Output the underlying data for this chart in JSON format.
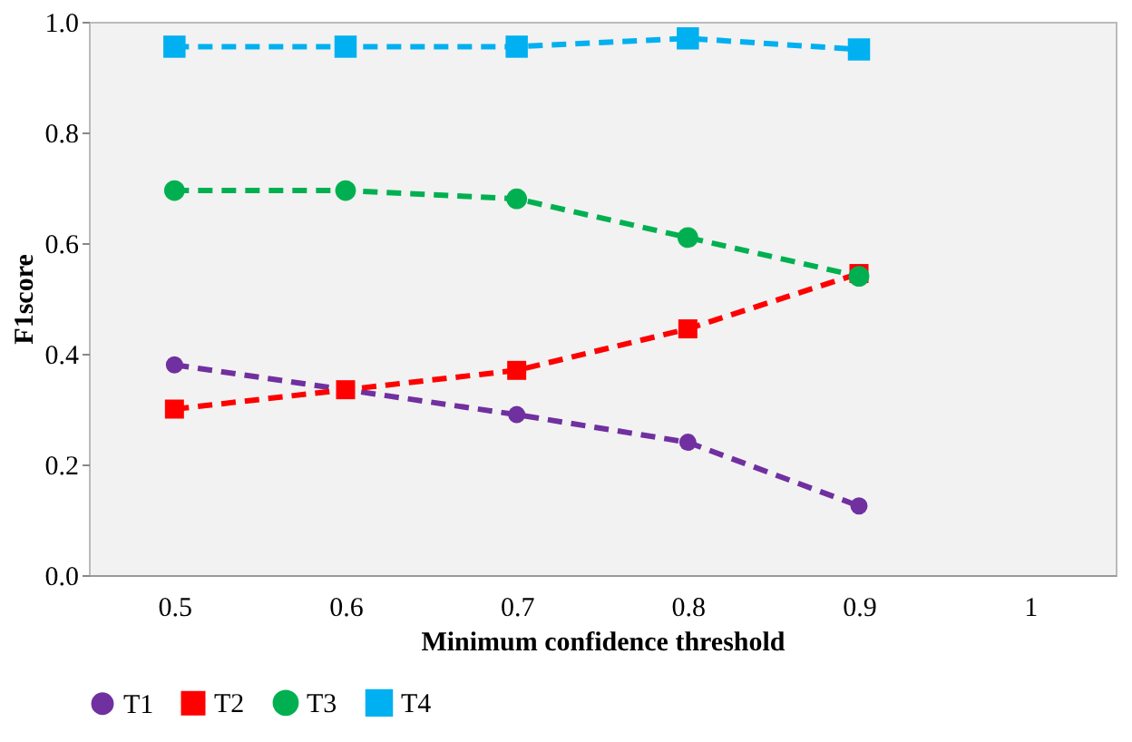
{
  "chart_data": {
    "type": "line",
    "xlabel": "Minimum  confidence threshold",
    "ylabel": "F1score",
    "x": [
      0.5,
      0.6,
      0.7,
      0.8,
      0.9
    ],
    "xlim": [
      0.45,
      1.05
    ],
    "xticks": [
      0.5,
      0.6,
      0.7,
      0.8,
      0.9,
      1
    ],
    "ylim": [
      0,
      1
    ],
    "yticks": [
      {
        "value": 0,
        "label": "0.0"
      },
      0.2,
      0.4,
      0.6,
      0.8,
      {
        "value": 1,
        "label": "1.0"
      }
    ],
    "grid": false,
    "legend": "bottom",
    "line_style": "dashed",
    "series": [
      {
        "name": "T1",
        "color": "#7030a0",
        "marker": "circle",
        "values": [
          0.38,
          0.335,
          0.29,
          0.24,
          0.125
        ]
      },
      {
        "name": "T2",
        "color": "#ff0000",
        "marker": "square",
        "values": [
          0.3,
          0.335,
          0.37,
          0.445,
          0.545
        ]
      },
      {
        "name": "T3",
        "color": "#00b050",
        "marker": "circle",
        "values": [
          0.695,
          0.695,
          0.68,
          0.61,
          0.54
        ]
      },
      {
        "name": "T4",
        "color": "#00b0f0",
        "marker": "square",
        "values": [
          0.955,
          0.955,
          0.955,
          0.97,
          0.95
        ]
      }
    ]
  }
}
